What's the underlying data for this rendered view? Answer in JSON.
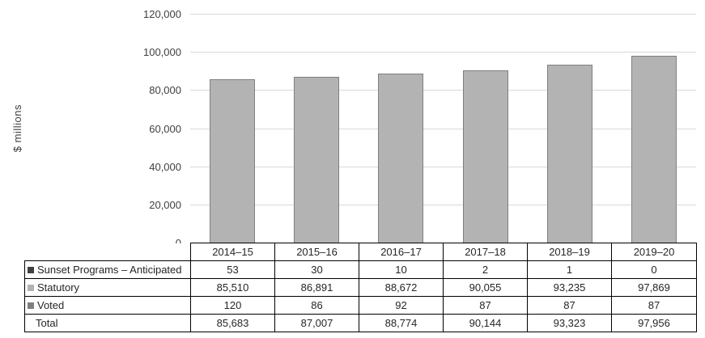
{
  "chart_data": {
    "type": "bar",
    "stacked": true,
    "title": "",
    "xlabel": "",
    "ylabel": "$ millions",
    "ylim": [
      0,
      120000
    ],
    "ytick_step": 20000,
    "ytick_labels": [
      "0",
      "20,000",
      "40,000",
      "60,000",
      "80,000",
      "100,000",
      "120,000"
    ],
    "grid": "horizontal",
    "legend_position": "table-left",
    "categories": [
      "2014–15",
      "2015–16",
      "2016–17",
      "2017–18",
      "2018–19",
      "2019–20"
    ],
    "series": [
      {
        "name": "Sunset Programs – Anticipated",
        "values": [
          53,
          30,
          10,
          2,
          1,
          0
        ],
        "color": "#404040"
      },
      {
        "name": "Statutory",
        "values": [
          85510,
          86891,
          88672,
          90055,
          93235,
          97869
        ],
        "color": "#b3b3b3"
      },
      {
        "name": "Voted",
        "values": [
          120,
          86,
          92,
          87,
          87,
          87
        ],
        "color": "#7f7f7f"
      }
    ],
    "totals": {
      "name": "Total",
      "values": [
        85683,
        87007,
        88774,
        90144,
        93323,
        97956
      ]
    },
    "bar_fill": "#b3b3b3",
    "bar_border": "#7f7f7f",
    "gridline_color": "#d9d9d9"
  },
  "table": {
    "header": [
      "2014–15",
      "2015–16",
      "2016–17",
      "2017–18",
      "2018–19",
      "2019–20"
    ],
    "rows": [
      {
        "label": "Sunset Programs – Anticipated",
        "marker": "#404040",
        "cells": [
          "53",
          "30",
          "10",
          "2",
          "1",
          "0"
        ]
      },
      {
        "label": "Statutory",
        "marker": "#b3b3b3",
        "cells": [
          "85,510",
          "86,891",
          "88,672",
          "90,055",
          "93,235",
          "97,869"
        ]
      },
      {
        "label": "Voted",
        "marker": "#7f7f7f",
        "cells": [
          "120",
          "86",
          "92",
          "87",
          "87",
          "87"
        ]
      },
      {
        "label": "Total",
        "marker": null,
        "cells": [
          "85,683",
          "87,007",
          "88,774",
          "90,144",
          "93,323",
          "97,956"
        ]
      }
    ]
  }
}
